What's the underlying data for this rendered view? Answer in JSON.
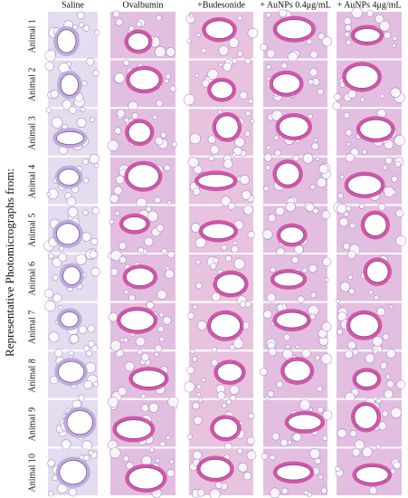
{
  "header": {
    "columns": [
      "Saline",
      "Ovalbumin",
      "+Budesonide",
      "+ AuNPs 0.4μg/mL",
      "+ AuNPs 4μg/mL"
    ]
  },
  "side_label": "Representative Photomicrographs from:",
  "rows": [
    "Animal 1",
    "Animal 2",
    "Animal 3",
    "Animal 4",
    "Animal 5",
    "Animal 6",
    "Animal 7",
    "Animal 8",
    "Animal 9",
    "Animal 10"
  ]
}
